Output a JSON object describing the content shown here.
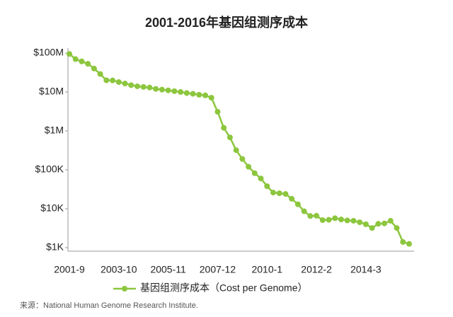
{
  "chart_data": {
    "type": "line",
    "title": "2001-2016年基因组测序成本",
    "categories": [
      "2001-9",
      null,
      null,
      null,
      null,
      null,
      null,
      null,
      "2003-10",
      null,
      null,
      null,
      null,
      null,
      null,
      null,
      "2005-11",
      null,
      null,
      null,
      null,
      null,
      null,
      null,
      "2007-12",
      null,
      null,
      null,
      null,
      null,
      null,
      null,
      "2010-1",
      null,
      null,
      null,
      null,
      null,
      null,
      null,
      "2012-2",
      null,
      null,
      null,
      null,
      null,
      null,
      null,
      "2014-3",
      null,
      null,
      null,
      null,
      null,
      null,
      null
    ],
    "series": [
      {
        "name": "基因组测序成本（Cost per Genome）",
        "color": "#8cc63e",
        "values": [
          95000000,
          70000000,
          61000000,
          53000000,
          40000000,
          29000000,
          20000000,
          19800000,
          18000000,
          16500000,
          15000000,
          14000000,
          13500000,
          13000000,
          12000000,
          11500000,
          11000000,
          10500000,
          10000000,
          9400000,
          9000000,
          8500000,
          8200000,
          7100000,
          3100000,
          1200000,
          680000,
          320000,
          190000,
          120000,
          82000,
          60000,
          38000,
          26000,
          25000,
          24000,
          18000,
          13000,
          8600,
          6500,
          6600,
          5100,
          5200,
          5700,
          5300,
          5000,
          4900,
          4500,
          4000,
          3200,
          4100,
          4200,
          4900,
          3200,
          1400,
          1250
        ]
      }
    ],
    "ylim": [
      1000,
      100000000
    ],
    "yticks": [
      {
        "value": 1000,
        "label": "$1K"
      },
      {
        "value": 10000,
        "label": "$10K"
      },
      {
        "value": 100000,
        "label": "$100K"
      },
      {
        "value": 1000000,
        "label": "$1M"
      },
      {
        "value": 10000000,
        "label": "$10M"
      },
      {
        "value": 100000000,
        "label": "$100M"
      }
    ],
    "log_y": true,
    "grid": false,
    "legend": "bottom",
    "source": "来源：National Human Genome Research Institute."
  }
}
